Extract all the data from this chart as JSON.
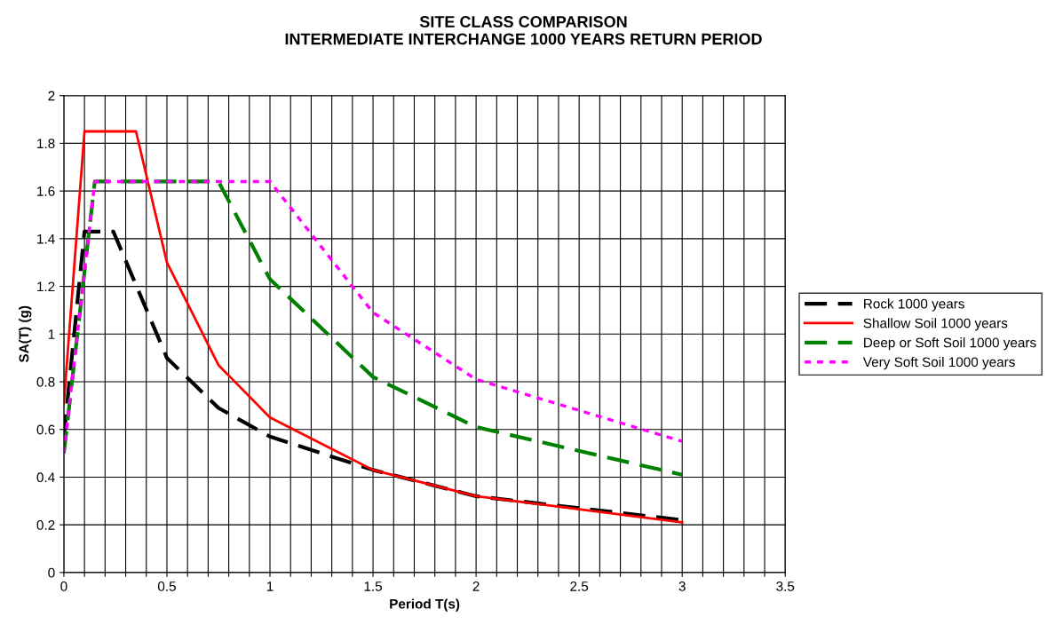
{
  "chart_data": {
    "type": "line",
    "title": "SITE CLASS COMPARISON\nINTERMEDIATE INTERCHANGE 1000 YEARS RETURN PERIOD",
    "xlabel": "Period T(s)",
    "ylabel": "SA(T) (g)",
    "series": [
      {
        "name": "Rock 1000 years",
        "color": "#000000",
        "line_style": "dashed",
        "x": [
          0,
          0.1,
          0.24,
          0.5,
          0.75,
          1.0,
          1.5,
          2.0,
          3.0
        ],
        "values": [
          0.57,
          1.43,
          1.43,
          0.9,
          0.69,
          0.57,
          0.43,
          0.32,
          0.22
        ]
      },
      {
        "name": "Shallow Soil 1000 years",
        "color": "#ff0000",
        "line_style": "solid",
        "x": [
          0,
          0.1,
          0.35,
          0.5,
          0.75,
          1.0,
          1.5,
          2.0,
          3.0
        ],
        "values": [
          0.71,
          1.85,
          1.85,
          1.3,
          0.87,
          0.65,
          0.43,
          0.32,
          0.21
        ]
      },
      {
        "name": "Deep or Soft Soil 1000 years",
        "color": "#008000",
        "line_style": "dashed",
        "x": [
          0,
          0.15,
          0.75,
          1.0,
          1.5,
          2.0,
          3.0
        ],
        "values": [
          0.5,
          1.64,
          1.64,
          1.23,
          0.82,
          0.61,
          0.41
        ]
      },
      {
        "name": "Very Soft Soil 1000 years",
        "color": "#ff00ff",
        "line_style": "dotted",
        "x": [
          0,
          0.15,
          1.0,
          1.5,
          2.0,
          3.0
        ],
        "values": [
          0.5,
          1.64,
          1.64,
          1.09,
          0.81,
          0.55
        ]
      }
    ],
    "xlim": [
      0,
      3.5
    ],
    "xticks": [
      0,
      {
        "value": 0.1,
        "label": null
      },
      {
        "value": 0.2,
        "label": null
      },
      {
        "value": 0.3,
        "label": null
      },
      {
        "value": 0.4,
        "label": null
      },
      0.5,
      {
        "value": 0.6,
        "label": null
      },
      {
        "value": 0.7,
        "label": null
      },
      {
        "value": 0.8,
        "label": null
      },
      {
        "value": 0.9,
        "label": null
      },
      1,
      {
        "value": 1.1,
        "label": null
      },
      {
        "value": 1.2,
        "label": null
      },
      {
        "value": 1.3,
        "label": null
      },
      {
        "value": 1.4,
        "label": null
      },
      1.5,
      {
        "value": 1.6,
        "label": null
      },
      {
        "value": 1.7,
        "label": null
      },
      {
        "value": 1.8,
        "label": null
      },
      {
        "value": 1.9,
        "label": null
      },
      2,
      {
        "value": 2.1,
        "label": null
      },
      {
        "value": 2.2,
        "label": null
      },
      {
        "value": 2.3,
        "label": null
      },
      {
        "value": 2.4,
        "label": null
      },
      2.5,
      {
        "value": 2.6,
        "label": null
      },
      {
        "value": 2.7,
        "label": null
      },
      {
        "value": 2.8,
        "label": null
      },
      {
        "value": 2.9,
        "label": null
      },
      3,
      {
        "value": 3.1,
        "label": null
      },
      {
        "value": 3.2,
        "label": null
      },
      {
        "value": 3.3,
        "label": null
      },
      {
        "value": 3.4,
        "label": null
      },
      3.5
    ],
    "ylim": [
      0,
      2
    ],
    "yticks": [
      0,
      0.2,
      0.4,
      0.6,
      0.8,
      1,
      1.2,
      1.4,
      1.6,
      1.8,
      2
    ],
    "grid": true,
    "legend": "right",
    "marker": "none"
  }
}
